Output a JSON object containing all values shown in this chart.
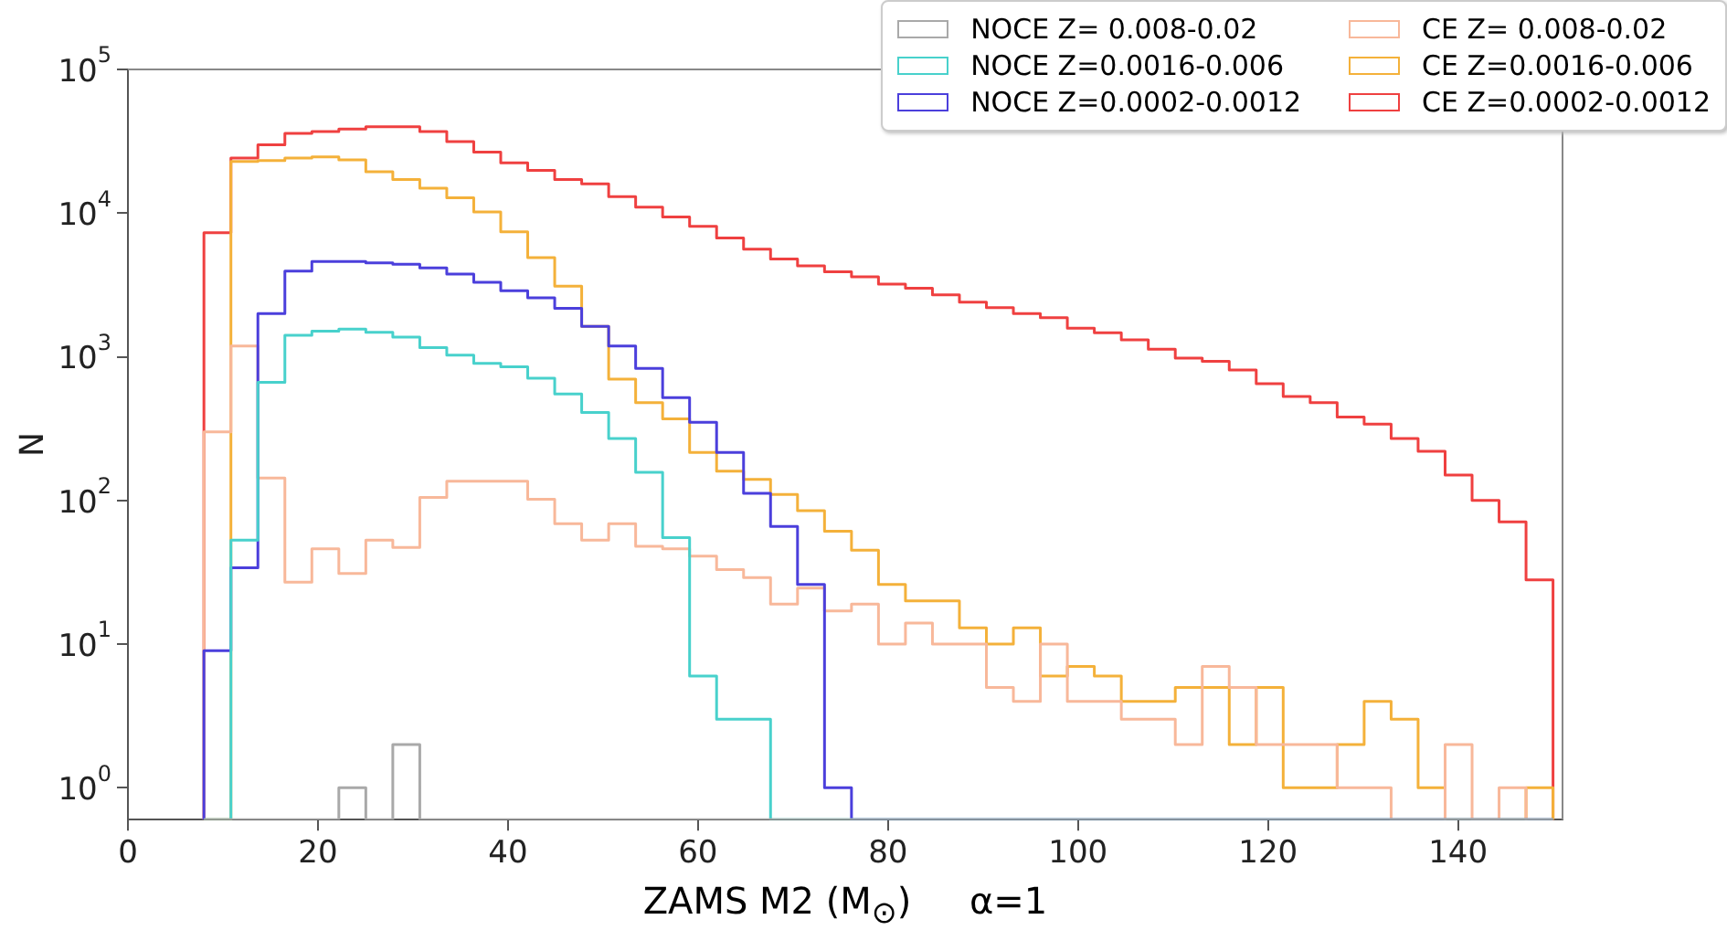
{
  "chart_data": {
    "type": "histogram",
    "xlabel": "ZAMS M2 (M$_{⊙}$)     α=1",
    "ylabel": "N",
    "bins": [
      8,
      10.84,
      13.68,
      16.52,
      19.36,
      22.2,
      25.04,
      27.88,
      30.72,
      33.56,
      36.4,
      39.24,
      42.08,
      44.92,
      47.76,
      50.6,
      53.44,
      56.28,
      59.12,
      61.96,
      64.8,
      67.64,
      70.48,
      73.32,
      76.16,
      79,
      81.84,
      84.68,
      87.52,
      90.36,
      93.2,
      96.04,
      98.88,
      101.72,
      104.56,
      107.4,
      110.24,
      113.08,
      115.92,
      118.76,
      121.6,
      124.44,
      127.28,
      130.12,
      132.96,
      135.8,
      138.64,
      141.48,
      144.32,
      147.16,
      150
    ],
    "series": [
      {
        "name": "NOCE Z= 0.008-0.02",
        "color": "#a9a9a9",
        "values": [
          null,
          null,
          null,
          null,
          null,
          1,
          null,
          2,
          null,
          null,
          null,
          null,
          null,
          null,
          null,
          null,
          null,
          null,
          null,
          null,
          null,
          null,
          null,
          null,
          null,
          null,
          null,
          null,
          null,
          null,
          null,
          null,
          null,
          null,
          null,
          null,
          null,
          null,
          null,
          null,
          null,
          null,
          null,
          null,
          null,
          null,
          null,
          null,
          null,
          null
        ]
      },
      {
        "name": "NOCE Z=0.0016-0.006",
        "color": "#48d1cc",
        "values": [
          null,
          53,
          665,
          1410,
          1510,
          1560,
          1480,
          1370,
          1160,
          1025,
          900,
          850,
          710,
          550,
          410,
          270,
          157,
          55,
          6,
          3,
          3,
          null,
          null,
          null,
          null,
          null,
          null,
          null,
          null,
          null,
          null,
          null,
          null,
          null,
          null,
          null,
          null,
          null,
          null,
          null,
          null,
          null,
          null,
          null,
          null,
          null,
          null,
          null,
          null,
          null
        ]
      },
      {
        "name": "NOCE Z=0.0002-0.0012",
        "color": "#4b3fdc",
        "values": [
          9,
          34,
          2000,
          3950,
          4600,
          4600,
          4500,
          4400,
          4160,
          3770,
          3300,
          2880,
          2570,
          2170,
          1630,
          1190,
          830,
          520,
          350,
          216,
          112,
          66,
          26,
          1,
          null,
          null,
          null,
          null,
          null,
          null,
          null,
          null,
          null,
          null,
          null,
          null,
          null,
          null,
          null,
          null,
          null,
          null,
          null,
          null,
          null,
          null,
          null,
          null,
          null,
          null
        ]
      },
      {
        "name": "CE Z= 0.008-0.02",
        "color": "#f8b89a",
        "values": [
          300,
          1190,
          143,
          27,
          46,
          31,
          53,
          47,
          105,
          136,
          136,
          136,
          102,
          69,
          53,
          69,
          48,
          46,
          41,
          33,
          29,
          19,
          24.5,
          17,
          19,
          10,
          14,
          10,
          10,
          5,
          4,
          10,
          4,
          4,
          3,
          3,
          2,
          7,
          5,
          2,
          2,
          2,
          1,
          1,
          null,
          null,
          2,
          null,
          1,
          null
        ]
      },
      {
        "name": "CE Z=0.0016-0.006",
        "color": "#f4b13a",
        "values": [
          null,
          22900,
          23200,
          24200,
          24600,
          23500,
          19400,
          17100,
          14900,
          12800,
          10200,
          7400,
          4900,
          3100,
          1630,
          700,
          480,
          370,
          216,
          160,
          140,
          110,
          85,
          61,
          45,
          26,
          20,
          20,
          13,
          10,
          13,
          6,
          7,
          6,
          4,
          4,
          5,
          5,
          2,
          5,
          1,
          1,
          2,
          4,
          3,
          1,
          null,
          null,
          null,
          1
        ]
      },
      {
        "name": "CE Z=0.0002-0.0012",
        "color": "#ef4040",
        "values": [
          7300,
          24200,
          29900,
          35900,
          37000,
          38400,
          39900,
          39900,
          37000,
          31400,
          26600,
          22400,
          19800,
          17100,
          16000,
          13000,
          11000,
          9400,
          8100,
          6700,
          5600,
          4800,
          4300,
          3900,
          3600,
          3200,
          3000,
          2700,
          2400,
          2200,
          2000,
          1870,
          1580,
          1470,
          1310,
          1130,
          980,
          930,
          810,
          650,
          530,
          480,
          380,
          340,
          270,
          220,
          150,
          100,
          71,
          28
        ]
      }
    ],
    "xlim": [
      0,
      151
    ],
    "xticks": [
      0,
      20,
      40,
      60,
      80,
      100,
      120,
      140
    ],
    "ylim": [
      0.6,
      100000
    ],
    "yticks": [
      {
        "value": 1,
        "label": "10$^{0}$"
      },
      {
        "value": 10,
        "label": "10$^{1}$"
      },
      {
        "value": 100,
        "label": "10$^{2}$"
      },
      {
        "value": 1000,
        "label": "10$^{3}$"
      },
      {
        "value": 10000,
        "label": "10$^{4}$"
      },
      {
        "value": 100000,
        "label": "10$^{5}$"
      }
    ],
    "log": "y",
    "grid": false,
    "legend": "top right"
  }
}
